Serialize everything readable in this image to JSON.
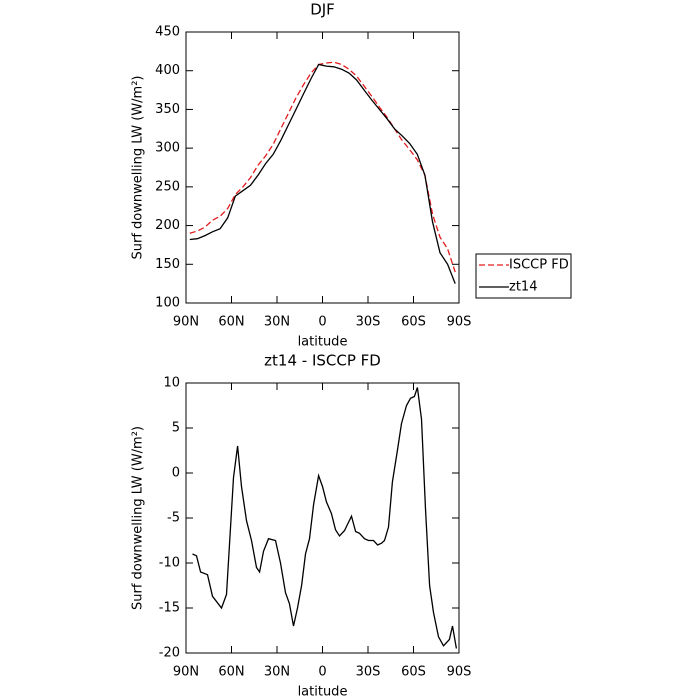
{
  "chart_data": [
    {
      "type": "line",
      "title": "DJF",
      "xlabel": "latitude",
      "ylabel": "Surf downwelling LW (W/m²)",
      "x": [
        87.5,
        82.5,
        77.5,
        72.5,
        67.5,
        62.5,
        57.5,
        52.5,
        47.5,
        42.5,
        37.5,
        32.5,
        27.5,
        22.5,
        17.5,
        12.5,
        7.5,
        2.5,
        -2.5,
        -7.5,
        -12.5,
        -17.5,
        -22.5,
        -27.5,
        -32.5,
        -37.5,
        -42.5,
        -47.5,
        -52.5,
        -57.5,
        -62.5,
        -67.5,
        -72.5,
        -77.5,
        -82.5,
        -87.5
      ],
      "series": [
        {
          "name": "ISCCP FD",
          "color": "#e41a1c",
          "dash": true,
          "values": [
            190,
            193,
            198,
            207,
            212,
            222,
            240,
            250,
            262,
            278,
            290,
            305,
            325,
            345,
            365,
            382,
            397,
            408,
            410,
            411,
            408,
            402,
            393,
            380,
            367,
            353,
            340,
            325,
            310,
            298,
            285,
            265,
            215,
            185,
            170,
            140
          ]
        },
        {
          "name": "zt14",
          "color": "#000000",
          "dash": false,
          "values": [
            182,
            183,
            187,
            192,
            196,
            210,
            238,
            245,
            252,
            265,
            280,
            292,
            310,
            330,
            350,
            370,
            390,
            408,
            406,
            405,
            402,
            397,
            388,
            375,
            362,
            350,
            338,
            325,
            316,
            306,
            292,
            265,
            205,
            165,
            150,
            125
          ]
        }
      ],
      "xlim": [
        90,
        -90
      ],
      "xticks": [
        {
          "value": 90,
          "label": "90N"
        },
        {
          "value": 60,
          "label": "60N"
        },
        {
          "value": 30,
          "label": "30N"
        },
        0,
        {
          "value": -30,
          "label": "30S"
        },
        {
          "value": -60,
          "label": "60S"
        },
        {
          "value": -90,
          "label": "90S"
        }
      ],
      "ylim": [
        100,
        450
      ],
      "yticks": [
        100,
        150,
        200,
        250,
        300,
        350,
        400,
        450
      ],
      "legend": "right"
    },
    {
      "type": "line",
      "title": "zt14 - ISCCP FD",
      "xlabel": "latitude",
      "ylabel": "Surf downwelling LW (W/m²)",
      "x": [
        85.7,
        83.1,
        80.4,
        75.8,
        72.5,
        66.6,
        63.3,
        58.7,
        56.0,
        53.4,
        50.1,
        46.8,
        43.5,
        41.5,
        38.9,
        35.6,
        31.0,
        27.7,
        24.4,
        21.8,
        19.1,
        16.5,
        13.8,
        11.2,
        8.6,
        5.9,
        2.6,
        0,
        -2.6,
        -5.9,
        -8.6,
        -11.2,
        -14.5,
        -17.1,
        -19.1,
        -21.8,
        -24.4,
        -27.7,
        -30.3,
        -33.6,
        -36.3,
        -38.9,
        -40.9,
        -43.5,
        -46.1,
        -49.4,
        -52.1,
        -55.4,
        -58.0,
        -60.6,
        -62.6,
        -65.3,
        -67.9,
        -70.6,
        -73.2,
        -76.5,
        -79.8,
        -83.7,
        -85.7,
        -88.3
      ],
      "values": [
        -9,
        -9.2,
        -11,
        -11.3,
        -13.7,
        -15,
        -13.5,
        -0.5,
        3,
        -1.5,
        -5.3,
        -7.5,
        -10.5,
        -11,
        -8.7,
        -7.3,
        -7.5,
        -10,
        -13.3,
        -14.5,
        -17,
        -15,
        -12.5,
        -9,
        -7.3,
        -3.5,
        -0.3,
        -1.5,
        -3.2,
        -4.5,
        -6.3,
        -7,
        -6.4,
        -5.5,
        -4.8,
        -6.5,
        -6.7,
        -7.3,
        -7.5,
        -7.5,
        -8,
        -7.8,
        -7.5,
        -6,
        -1,
        2.5,
        5.5,
        7.5,
        8.3,
        8.5,
        9.5,
        6,
        -4,
        -12.5,
        -15.5,
        -18.2,
        -19.2,
        -18.5,
        -17,
        -19.5
      ],
      "color": "#000000",
      "xlim": [
        90,
        -90
      ],
      "xticks": [
        {
          "value": 90,
          "label": "90N"
        },
        {
          "value": 60,
          "label": "60N"
        },
        {
          "value": 30,
          "label": "30N"
        },
        0,
        {
          "value": -30,
          "label": "30S"
        },
        {
          "value": -60,
          "label": "60S"
        },
        {
          "value": -90,
          "label": "90S"
        }
      ],
      "ylim": [
        -20,
        10
      ],
      "yticks": [
        -20,
        -15,
        -10,
        -5,
        0,
        5,
        10
      ]
    }
  ]
}
